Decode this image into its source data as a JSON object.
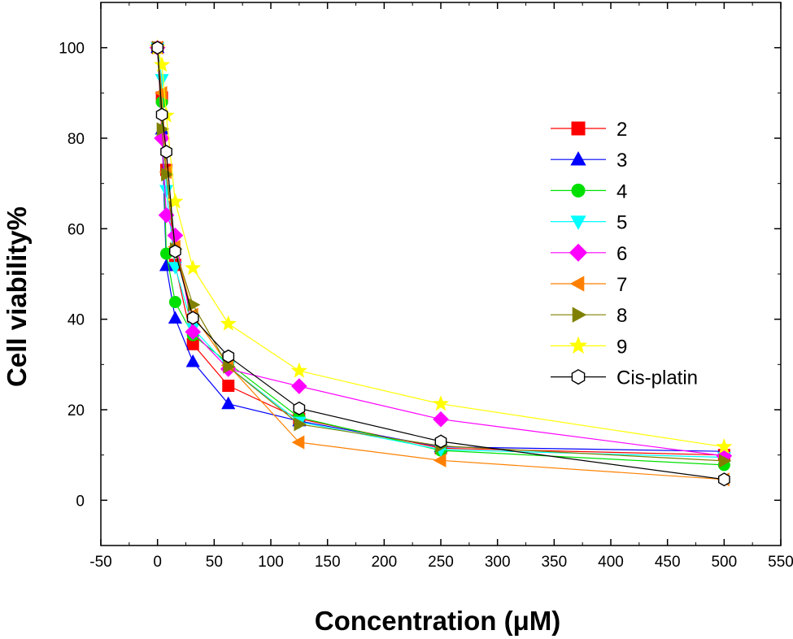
{
  "chart_data": {
    "type": "line",
    "xlabel": "Concentration (μM)",
    "ylabel": "Cell viability%",
    "xlim": [
      -50,
      550
    ],
    "ylim": [
      -10,
      110
    ],
    "xticks": [
      -50,
      0,
      50,
      100,
      150,
      200,
      250,
      300,
      350,
      400,
      450,
      500,
      550
    ],
    "yticks": [
      0,
      20,
      40,
      60,
      80,
      100
    ],
    "legend_position": "right",
    "grid": false,
    "series": [
      {
        "name": "2",
        "color": "#ff0000",
        "marker": "square",
        "x": [
          0,
          3.9,
          7.8,
          15.6,
          31.25,
          62.5,
          125,
          250,
          500
        ],
        "y": [
          100,
          89,
          73,
          52,
          34.5,
          25.3,
          18,
          11.5,
          10
        ]
      },
      {
        "name": "3",
        "color": "#0000ff",
        "marker": "triangle-up",
        "x": [
          0,
          3.9,
          7.8,
          15.6,
          31.25,
          62.5,
          125,
          250,
          500
        ],
        "y": [
          100,
          82,
          51.8,
          40.2,
          30.6,
          21.3,
          17.5,
          11.8,
          10.8
        ]
      },
      {
        "name": "4",
        "color": "#00e000",
        "marker": "circle",
        "x": [
          0,
          3.9,
          7.8,
          15.6,
          31.25,
          62.5,
          125,
          250,
          500
        ],
        "y": [
          100,
          88,
          54.5,
          43.8,
          36.5,
          30.3,
          18.3,
          11,
          7.8
        ]
      },
      {
        "name": "5",
        "color": "#00ffff",
        "marker": "triangle-down",
        "x": [
          0,
          3.9,
          7.8,
          15.6,
          31.25,
          62.5,
          125,
          250,
          500
        ],
        "y": [
          100,
          93,
          68.5,
          51.5,
          38,
          29.5,
          17.3,
          11.2,
          9.5
        ]
      },
      {
        "name": "6",
        "color": "#ff00ff",
        "marker": "diamond",
        "x": [
          0,
          3.9,
          7.8,
          15.6,
          31.25,
          62.5,
          125,
          250,
          500
        ],
        "y": [
          100,
          80,
          63,
          58.5,
          37.2,
          29,
          25.2,
          17.9,
          9.8
        ]
      },
      {
        "name": "7",
        "color": "#ff8000",
        "marker": "triangle-left",
        "x": [
          0,
          3.9,
          7.8,
          15.6,
          31.25,
          62.5,
          125,
          250,
          500
        ],
        "y": [
          100,
          90,
          72.5,
          56,
          41,
          29.8,
          12.8,
          8.8,
          4.6
        ]
      },
      {
        "name": "8",
        "color": "#808000",
        "marker": "triangle-right",
        "x": [
          0,
          3.9,
          7.8,
          15.6,
          31.25,
          62.5,
          125,
          250,
          500
        ],
        "y": [
          100,
          82,
          72,
          55.5,
          43.2,
          29.5,
          16.8,
          12,
          8.7
        ]
      },
      {
        "name": "9",
        "color": "#ffff00",
        "marker": "star",
        "x": [
          0,
          3.9,
          7.8,
          15.6,
          31.25,
          62.5,
          125,
          250,
          500
        ],
        "y": [
          100,
          96.2,
          85,
          66,
          51.3,
          39,
          28.6,
          21.3,
          11.8
        ]
      },
      {
        "name": "Cis-platin",
        "color": "#000000",
        "marker": "hexagon",
        "x": [
          0,
          3.9,
          7.8,
          15.6,
          31.25,
          62.5,
          125,
          250,
          500
        ],
        "y": [
          100,
          85.2,
          77,
          55,
          40.3,
          31.8,
          20.3,
          13,
          4.6
        ]
      }
    ]
  }
}
